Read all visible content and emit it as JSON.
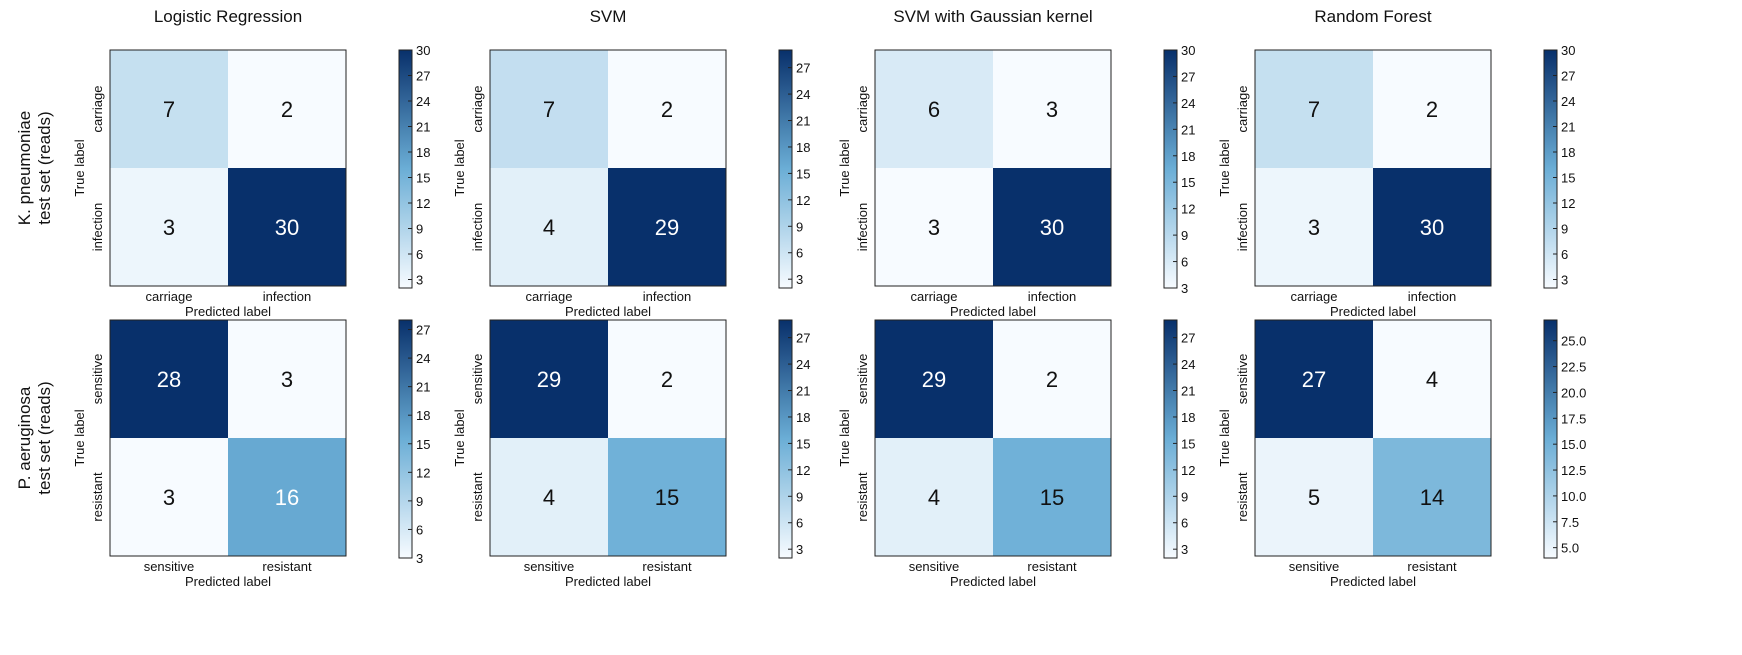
{
  "column_titles": [
    "Logistic Regression",
    "SVM",
    "SVM with Gaussian kernel",
    "Random Forest"
  ],
  "row_titles": [
    [
      "K. pneumoniae",
      "test set (reads)"
    ],
    [
      "P. aeruginosa",
      "test set (reads)"
    ]
  ],
  "colormap": {
    "low": "#f7fbff",
    "mid": "#6baed6",
    "high": "#08306b",
    "text_dark": "#111111",
    "text_light": "#ffffff"
  },
  "chart_data": [
    {
      "type": "heatmap",
      "title": "Logistic Regression",
      "xlabel": "Predicted label",
      "ylabel": "True label",
      "labels": [
        "carriage",
        "infection"
      ],
      "matrix": [
        [
          7,
          2
        ],
        [
          3,
          30
        ]
      ],
      "clim": [
        2,
        30
      ],
      "colorbar_ticks": [
        "3",
        "6",
        "9",
        "12",
        "15",
        "18",
        "21",
        "24",
        "27",
        "30"
      ]
    },
    {
      "type": "heatmap",
      "title": "SVM",
      "xlabel": "Predicted label",
      "ylabel": "True label",
      "labels": [
        "carriage",
        "infection"
      ],
      "matrix": [
        [
          7,
          2
        ],
        [
          4,
          29
        ]
      ],
      "clim": [
        2,
        29
      ],
      "colorbar_ticks": [
        "3",
        "6",
        "9",
        "12",
        "15",
        "18",
        "21",
        "24",
        "27"
      ]
    },
    {
      "type": "heatmap",
      "title": "SVM with Gaussian kernel",
      "xlabel": "Predicted label",
      "ylabel": "True label",
      "labels": [
        "carriage",
        "infection"
      ],
      "matrix": [
        [
          6,
          3
        ],
        [
          3,
          30
        ]
      ],
      "clim": [
        3,
        30
      ],
      "colorbar_ticks": [
        "3",
        "6",
        "9",
        "12",
        "15",
        "18",
        "21",
        "24",
        "27",
        "30"
      ]
    },
    {
      "type": "heatmap",
      "title": "Random Forest",
      "xlabel": "Predicted label",
      "ylabel": "True label",
      "labels": [
        "carriage",
        "infection"
      ],
      "matrix": [
        [
          7,
          2
        ],
        [
          3,
          30
        ]
      ],
      "clim": [
        2,
        30
      ],
      "colorbar_ticks": [
        "3",
        "6",
        "9",
        "12",
        "15",
        "18",
        "21",
        "24",
        "27",
        "30"
      ]
    },
    {
      "type": "heatmap",
      "title": "",
      "xlabel": "Predicted label",
      "ylabel": "True label",
      "labels": [
        "sensitive",
        "resistant"
      ],
      "matrix": [
        [
          28,
          3
        ],
        [
          3,
          16
        ]
      ],
      "clim": [
        3,
        28
      ],
      "colorbar_ticks": [
        "3",
        "6",
        "9",
        "12",
        "15",
        "18",
        "21",
        "24",
        "27"
      ]
    },
    {
      "type": "heatmap",
      "title": "",
      "xlabel": "Predicted label",
      "ylabel": "True label",
      "labels": [
        "sensitive",
        "resistant"
      ],
      "matrix": [
        [
          29,
          2
        ],
        [
          4,
          15
        ]
      ],
      "clim": [
        2,
        29
      ],
      "colorbar_ticks": [
        "3",
        "6",
        "9",
        "12",
        "15",
        "18",
        "21",
        "24",
        "27"
      ]
    },
    {
      "type": "heatmap",
      "title": "",
      "xlabel": "Predicted label",
      "ylabel": "True label",
      "labels": [
        "sensitive",
        "resistant"
      ],
      "matrix": [
        [
          29,
          2
        ],
        [
          4,
          15
        ]
      ],
      "clim": [
        2,
        29
      ],
      "colorbar_ticks": [
        "3",
        "6",
        "9",
        "12",
        "15",
        "18",
        "21",
        "24",
        "27"
      ]
    },
    {
      "type": "heatmap",
      "title": "",
      "xlabel": "Predicted label",
      "ylabel": "True label",
      "labels": [
        "sensitive",
        "resistant"
      ],
      "matrix": [
        [
          27,
          4
        ],
        [
          5,
          14
        ]
      ],
      "clim": [
        4,
        27
      ],
      "colorbar_ticks": [
        "5.0",
        "7.5",
        "10.0",
        "12.5",
        "15.0",
        "17.5",
        "20.0",
        "22.5",
        "25.0"
      ]
    }
  ]
}
